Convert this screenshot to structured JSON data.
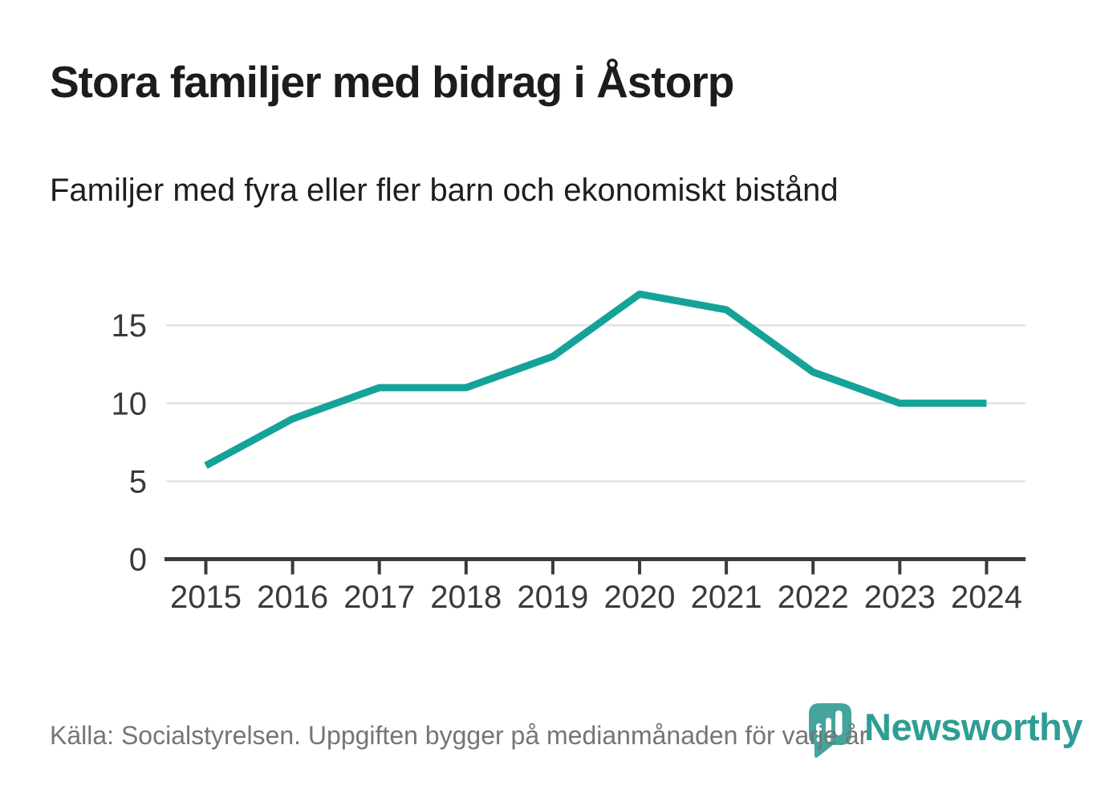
{
  "header": {
    "title": "Stora familjer med bidrag i Åstorp",
    "subtitle": "Familjer med fyra eller fler barn och ekonomiskt bistånd"
  },
  "footer": {
    "source": "Källa: Socialstyrelsen. Uppgiften bygger på medianmånaden för varje år",
    "brand": "Newsworthy"
  },
  "colors": {
    "line": "#15a399",
    "grid": "#e4e4e4",
    "axis": "#3a3a3a",
    "tick_text": "#3a3a3a",
    "muted_text": "#757575",
    "brand_icon": "#45a49b",
    "brand_text": "#2d9e94"
  },
  "chart_data": {
    "type": "line",
    "title": "Stora familjer med bidrag i Åstorp",
    "subtitle": "Familjer med fyra eller fler barn och ekonomiskt bistånd",
    "x": [
      "2015",
      "2016",
      "2017",
      "2018",
      "2019",
      "2020",
      "2021",
      "2022",
      "2023",
      "2024"
    ],
    "series": [
      {
        "name": "Familjer med fyra eller fler barn och ekonomiskt bistånd",
        "values": [
          6,
          9,
          11,
          11,
          13,
          17,
          16,
          12,
          10,
          10
        ]
      }
    ],
    "xlabel": "",
    "ylabel": "",
    "yticks": [
      0,
      5,
      10,
      15
    ],
    "ylim": [
      0,
      18.5
    ],
    "grid": "horizontal",
    "legend": "none",
    "line_color": "#15a399"
  }
}
